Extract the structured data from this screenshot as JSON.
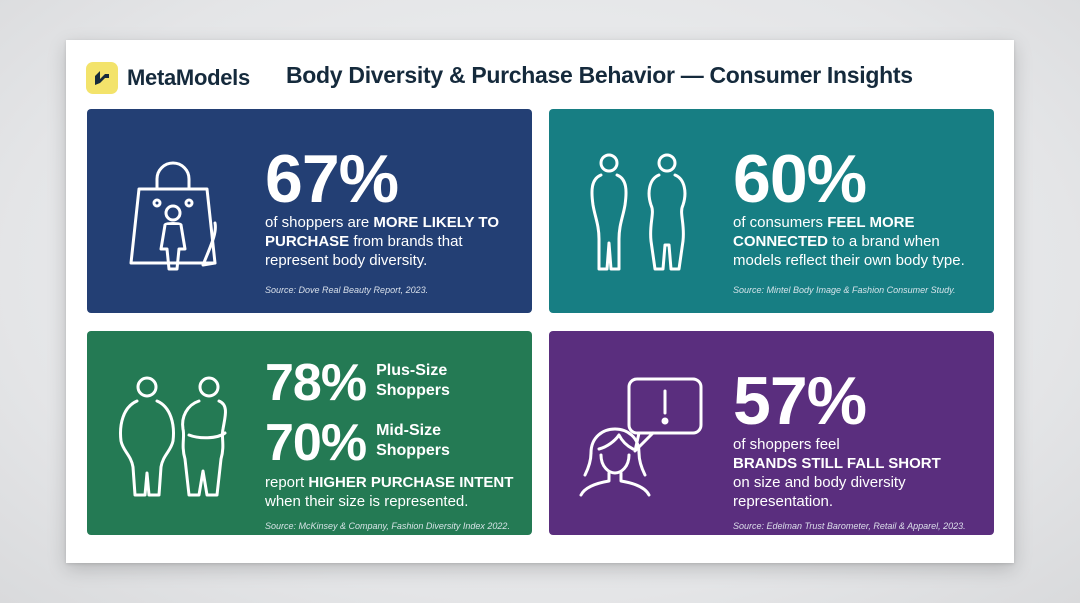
{
  "header": {
    "brand": "MetaModels",
    "title": "Body Diversity & Purchase Behavior — Consumer Insights"
  },
  "colors": {
    "card1": "#233f74",
    "card2": "#177e83",
    "card3": "#247a54",
    "card4": "#5a2e7e",
    "logo": "#f3e36b"
  },
  "cards": [
    {
      "icon": "shopping-bag-person-icon",
      "stat": "67%",
      "text_pre": "of shoppers are ",
      "text_bold": "MORE LIKELY TO PURCHASE",
      "text_post": " from brands that represent body diversity.",
      "source": "Source: Dove Real Beauty Report, 2023."
    },
    {
      "icon": "two-body-figures-icon",
      "stat": "60%",
      "text_pre": "of consumers ",
      "text_bold": "FEEL MORE CONNECTED",
      "text_post": " to a brand when models reflect their own body type.",
      "source": "Source: Mintel Body Image & Fashion Consumer Study."
    },
    {
      "icon": "plus-size-figures-icon",
      "stats": [
        {
          "value": "78%",
          "label": "Plus-Size Shoppers"
        },
        {
          "value": "70%",
          "label": "Mid-Size Shoppers"
        }
      ],
      "text_pre": "report ",
      "text_bold": "HIGHER PURCHASE INTENT",
      "text_post": " when their size is represented.",
      "source": "Source: McKinsey & Company, Fashion Diversity Index 2022."
    },
    {
      "icon": "woman-speech-bubble-exclamation-icon",
      "stat": "57%",
      "text_pre": "of shoppers feel",
      "text_bold": "BRANDS STILL FALL SHORT",
      "text_post": "on size and body diversity representation.",
      "source": "Source: Edelman Trust Barometer, Retail & Apparel, 2023."
    }
  ]
}
